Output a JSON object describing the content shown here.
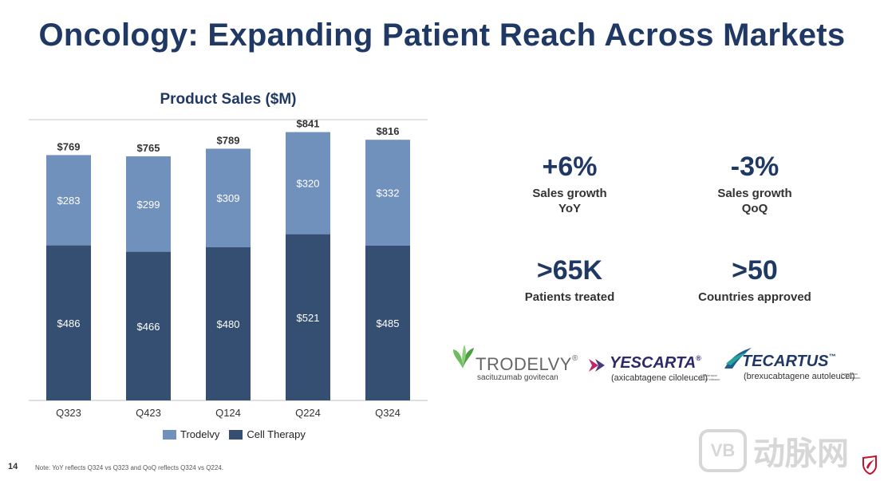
{
  "page": {
    "title": "Oncology: Expanding Patient Reach Across Markets",
    "page_number": "14",
    "footnote": "Note: YoY reflects Q324 vs Q323 and QoQ reflects Q324 vs Q224."
  },
  "stats": [
    {
      "value": "+6%",
      "label_line1": "Sales growth",
      "label_line2": "YoY"
    },
    {
      "value": "-3%",
      "label_line1": "Sales growth",
      "label_line2": "QoQ"
    },
    {
      "value": ">65K",
      "label_line1": "Patients treated",
      "label_line2": ""
    },
    {
      "value": ">50",
      "label_line1": "Countries approved",
      "label_line2": ""
    }
  ],
  "logos": {
    "trodelvy": {
      "name": "TRODELVY",
      "mark": "®",
      "sub": "sacituzumab govitecan"
    },
    "yescarta": {
      "name": "YESCARTA",
      "mark": "®",
      "sub": "(axicabtagene ciloleucel)",
      "note": "Suspension for IV infusion"
    },
    "tecartus": {
      "name": "TECARTUS",
      "mark": "™",
      "sub": "(brexucabtagene autoleucel)",
      "note": "Suspension for IV infusion"
    }
  },
  "watermark": {
    "text": "动脉网",
    "box": "VB"
  },
  "colors": {
    "trodelvy": "#7191bd",
    "cell_therapy": "#344f72",
    "title": "#1f3864"
  },
  "chart_data": {
    "type": "bar",
    "stacked": true,
    "title": "Product Sales ($M)",
    "categories": [
      "Q323",
      "Q423",
      "Q124",
      "Q224",
      "Q324"
    ],
    "series": [
      {
        "name": "Cell Therapy",
        "values": [
          486,
          466,
          480,
          521,
          485
        ],
        "labels": [
          "$486",
          "$466",
          "$480",
          "$521",
          "$485"
        ]
      },
      {
        "name": "Trodelvy",
        "values": [
          283,
          299,
          309,
          320,
          332
        ],
        "labels": [
          "$283",
          "$299",
          "$309",
          "$320",
          "$332"
        ]
      }
    ],
    "totals": [
      769,
      765,
      789,
      841,
      816
    ],
    "total_labels": [
      "$769",
      "$765",
      "$789",
      "$841",
      "$816"
    ],
    "legend": [
      "Trodelvy",
      "Cell Therapy"
    ],
    "legend_position": "bottom",
    "ylim": [
      0,
      900
    ],
    "grid": false
  }
}
